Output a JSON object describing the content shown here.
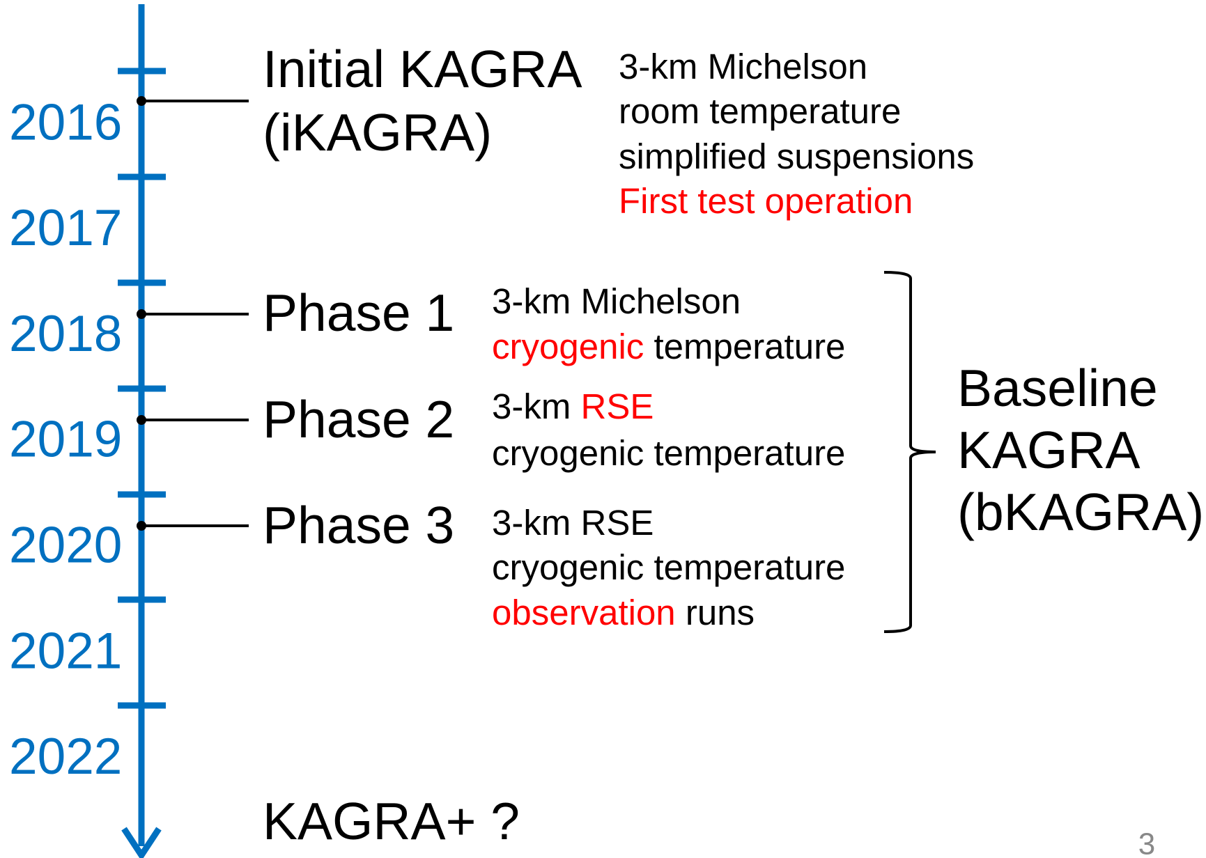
{
  "timeline": {
    "years": [
      "2016",
      "2017",
      "2018",
      "2019",
      "2020",
      "2021",
      "2022"
    ],
    "phases": [
      {
        "label": [
          "Initial KAGRA",
          "(iKAGRA)"
        ],
        "details": [
          [
            {
              "text": "3-km Michelson"
            }
          ],
          [
            {
              "text": "room temperature"
            }
          ],
          [
            {
              "text": "simplified suspensions"
            }
          ],
          [
            {
              "text": "First test operation",
              "highlight": true
            }
          ]
        ]
      },
      {
        "label": [
          "Phase 1"
        ],
        "details": [
          [
            {
              "text": "3-km Michelson"
            }
          ],
          [
            {
              "text": "cryogenic",
              "highlight": true
            },
            {
              "text": " temperature"
            }
          ]
        ]
      },
      {
        "label": [
          "Phase 2"
        ],
        "details": [
          [
            {
              "text": "3-km "
            },
            {
              "text": "RSE",
              "highlight": true
            }
          ],
          [
            {
              "text": "cryogenic temperature"
            }
          ]
        ]
      },
      {
        "label": [
          "Phase 3"
        ],
        "details": [
          [
            {
              "text": "3-km RSE"
            }
          ],
          [
            {
              "text": "cryogenic temperature"
            }
          ],
          [
            {
              "text": "observation",
              "highlight": true
            },
            {
              "text": " runs"
            }
          ]
        ]
      }
    ],
    "group_label": [
      "Baseline",
      "KAGRA",
      "(bKAGRA)"
    ],
    "future": "KAGRA+ ?",
    "page_number": "3"
  }
}
